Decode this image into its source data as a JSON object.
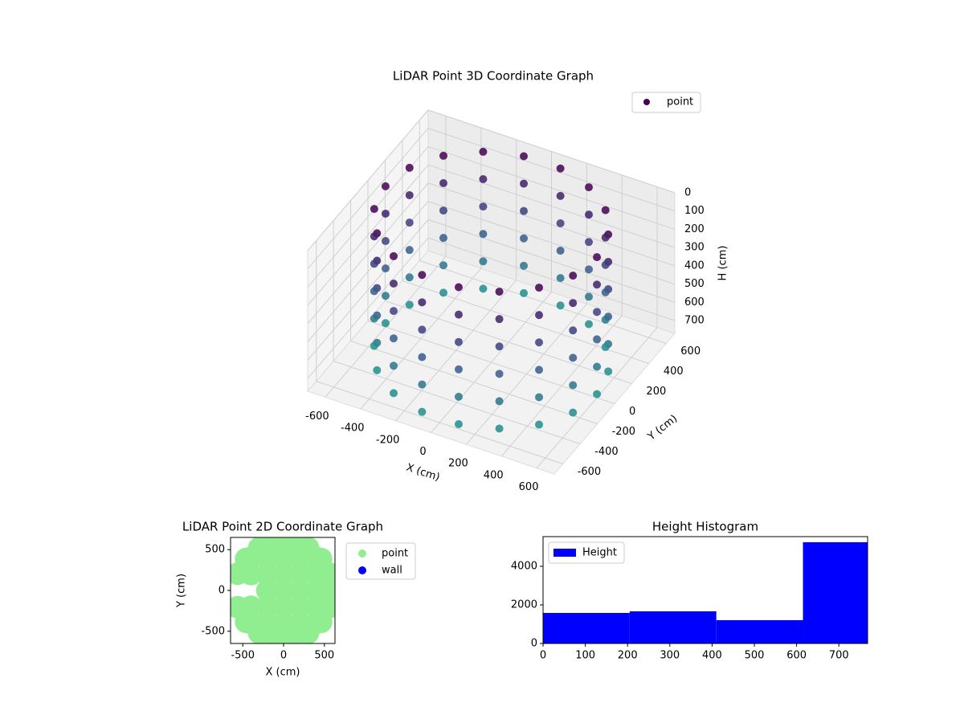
{
  "chart_data": [
    {
      "type": "scatter3d",
      "title": "LiDAR Point 3D Coordinate Graph",
      "xlabel": "X (cm)",
      "ylabel": "Y (cm)",
      "zlabel": "H (cm)",
      "xlim": [
        -700,
        700
      ],
      "ylim": [
        -700,
        700
      ],
      "zlim": [
        770,
        0
      ],
      "xticks": [
        -600,
        -400,
        -200,
        0,
        200,
        400,
        600
      ],
      "yticks": [
        -600,
        -400,
        -200,
        0,
        200,
        400,
        600
      ],
      "zticks": [
        0,
        100,
        200,
        300,
        400,
        500,
        600,
        700
      ],
      "legend": "upper right",
      "series": [
        {
          "name": "point",
          "color": "#440154",
          "x": [
            600,
            564,
            460,
            300,
            104,
            -104,
            -300,
            -460,
            -564,
            -600,
            -564,
            -460,
            -300,
            -104,
            104,
            300,
            460,
            564,
            600,
            564,
            460,
            300,
            104,
            -104,
            -300,
            -460,
            -564,
            -600,
            -564,
            -460,
            -300,
            -104,
            104,
            300,
            460,
            564,
            600,
            564,
            460,
            300,
            104,
            -104,
            -300,
            -460,
            -564,
            -600,
            -564,
            -460,
            -300,
            -104,
            104,
            300,
            460,
            564,
            600,
            564,
            460,
            300,
            104,
            -104,
            -300,
            -460,
            -564,
            -600,
            -564,
            -460,
            -300,
            -104,
            104,
            300,
            460,
            564,
            600,
            564,
            460,
            300,
            104,
            -104,
            -300,
            -460,
            -564,
            -600,
            -564,
            -460,
            -300,
            -104,
            104,
            300,
            460,
            564,
            600,
            564,
            460,
            300,
            104,
            -104,
            -300,
            -460,
            -564,
            -600,
            -564,
            -460,
            -300,
            -104,
            104,
            300,
            460,
            564
          ],
          "y": [
            0,
            205,
            386,
            520,
            591,
            591,
            520,
            386,
            205,
            0,
            -205,
            -386,
            -520,
            -591,
            -591,
            -520,
            -386,
            -205,
            0,
            205,
            386,
            520,
            591,
            591,
            520,
            386,
            205,
            0,
            -205,
            -386,
            -520,
            -591,
            -591,
            -520,
            -386,
            -205,
            0,
            205,
            386,
            520,
            591,
            591,
            520,
            386,
            205,
            0,
            -205,
            -386,
            -520,
            -591,
            -591,
            -520,
            -386,
            -205,
            0,
            205,
            386,
            520,
            591,
            591,
            520,
            386,
            205,
            0,
            -205,
            -386,
            -520,
            -591,
            -591,
            -520,
            -386,
            -205,
            0,
            205,
            386,
            520,
            591,
            591,
            520,
            386,
            205,
            0,
            -205,
            -386,
            -520,
            -591,
            -591,
            -520,
            -386,
            -205,
            0,
            205,
            386,
            520,
            591,
            591,
            520,
            386,
            205,
            0,
            -205,
            -386,
            -520,
            -591,
            -591,
            -520,
            -386,
            -205
          ],
          "z": [
            0,
            0,
            0,
            0,
            0,
            0,
            0,
            0,
            0,
            0,
            0,
            0,
            0,
            0,
            0,
            0,
            0,
            0,
            150,
            150,
            150,
            150,
            150,
            150,
            150,
            150,
            150,
            150,
            150,
            150,
            150,
            150,
            150,
            150,
            150,
            150,
            300,
            300,
            300,
            300,
            300,
            300,
            300,
            300,
            300,
            300,
            300,
            300,
            300,
            300,
            300,
            300,
            300,
            300,
            450,
            450,
            450,
            450,
            450,
            450,
            450,
            450,
            450,
            450,
            450,
            450,
            450,
            450,
            450,
            450,
            450,
            450,
            600,
            600,
            600,
            600,
            600,
            600,
            600,
            600,
            600,
            600,
            600,
            600,
            600,
            600,
            600,
            600,
            600,
            600,
            750,
            750,
            750,
            750,
            750,
            750,
            750,
            750,
            750,
            750,
            750,
            750,
            750,
            750,
            750,
            750,
            750,
            750
          ]
        }
      ]
    },
    {
      "type": "scatter",
      "title": "LiDAR Point 2D Coordinate Graph",
      "xlabel": "X (cm)",
      "ylabel": "Y (cm)",
      "xlim": [
        -650,
        630
      ],
      "ylim": [
        -650,
        650
      ],
      "xticks": [
        -500,
        0,
        500
      ],
      "yticks": [
        -500,
        0,
        500
      ],
      "legend": "outside right",
      "series": [
        {
          "name": "point",
          "color": "#90ee90",
          "x": [
            0,
            -400,
            -200,
            0,
            200,
            400,
            -400,
            -200,
            0,
            200,
            400,
            -200,
            0,
            200,
            400,
            600,
            -400,
            -200,
            0,
            200,
            400,
            -400,
            -200,
            0,
            200,
            400,
            0,
            600,
            564,
            460,
            300,
            104,
            -104,
            -300,
            -460,
            -564,
            -564,
            -460,
            -300,
            -104,
            104,
            300,
            460,
            564
          ],
          "y": [
            600,
            400,
            400,
            400,
            400,
            400,
            200,
            200,
            200,
            200,
            200,
            0,
            0,
            0,
            0,
            0,
            -200,
            -200,
            -200,
            -200,
            -200,
            -400,
            -400,
            -400,
            -400,
            -400,
            -600,
            0,
            205,
            386,
            520,
            591,
            591,
            520,
            386,
            205,
            -205,
            -386,
            -520,
            -591,
            -591,
            -520,
            -386,
            -205
          ]
        },
        {
          "name": "wall",
          "color": "#0000ff",
          "x": [],
          "y": []
        }
      ]
    },
    {
      "type": "histogram",
      "title": "Height Histogram",
      "bins": [
        0,
        205,
        410,
        615,
        768
      ],
      "values": [
        1583,
        1667,
        1208,
        5250
      ],
      "series_name": "Height",
      "color": "#0000ff",
      "xlim": [
        0,
        768
      ],
      "ylim": [
        0,
        5540
      ],
      "xticks": [
        0,
        100,
        200,
        300,
        400,
        500,
        600,
        700
      ],
      "yticks": [
        0,
        2000,
        4000
      ],
      "legend": "upper left"
    }
  ]
}
